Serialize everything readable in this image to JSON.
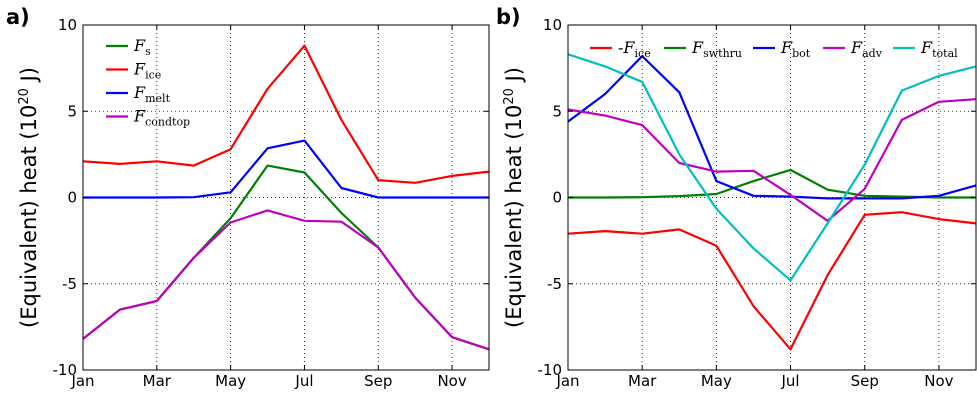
{
  "chart_data": [
    {
      "type": "line",
      "panel_label": "a)",
      "title": "",
      "xlabel": "",
      "ylabel_base": "(Equivalent) heat (10",
      "ylabel_exp": "20",
      "ylabel_end": " J)",
      "xlim": [
        1,
        12
      ],
      "ylim": [
        -10,
        10
      ],
      "x": [
        1,
        2,
        3,
        4,
        5,
        6,
        7,
        8,
        9,
        10,
        11,
        12
      ],
      "xtick_values": [
        1,
        3,
        5,
        7,
        9,
        11
      ],
      "xtick_labels": [
        "Jan",
        "Mar",
        "May",
        "Jul",
        "Sep",
        "Nov"
      ],
      "yticks": [
        -10,
        -5,
        0,
        5,
        10
      ],
      "grid": true,
      "legend_position": "top-left",
      "series": [
        {
          "name": "F",
          "sub": "s",
          "color": "#008000",
          "values": [
            -8.2,
            -6.5,
            -6.0,
            -3.5,
            -1.2,
            1.85,
            1.45,
            -0.9,
            -2.9,
            -5.8,
            -8.1,
            -8.8
          ]
        },
        {
          "name": "F",
          "sub": "ice",
          "color": "#ff0000",
          "values": [
            2.1,
            1.95,
            2.1,
            1.85,
            2.8,
            6.3,
            8.8,
            4.5,
            1.0,
            0.85,
            1.25,
            1.5
          ]
        },
        {
          "name": "F",
          "sub": "melt",
          "color": "#0000ff",
          "values": [
            0.0,
            0.0,
            0.0,
            0.02,
            0.3,
            2.85,
            3.3,
            0.55,
            0.0,
            0.0,
            0.0,
            0.0
          ]
        },
        {
          "name": "F",
          "sub": "condtop",
          "color": "#bf00bf",
          "values": [
            -8.2,
            -6.5,
            -6.0,
            -3.5,
            -1.45,
            -0.75,
            -1.35,
            -1.4,
            -2.9,
            -5.8,
            -8.1,
            -8.8
          ]
        }
      ]
    },
    {
      "type": "line",
      "panel_label": "b)",
      "title": "",
      "xlabel": "",
      "ylabel_base": "(Equivalent) heat (10",
      "ylabel_exp": "20",
      "ylabel_end": " J)",
      "xlim": [
        1,
        12
      ],
      "ylim": [
        -10,
        10
      ],
      "x": [
        1,
        2,
        3,
        4,
        5,
        6,
        7,
        8,
        9,
        10,
        11,
        12
      ],
      "xtick_values": [
        1,
        3,
        5,
        7,
        9,
        11
      ],
      "xtick_labels": [
        "Jan",
        "Mar",
        "May",
        "Jul",
        "Sep",
        "Nov"
      ],
      "yticks": [
        -10,
        -5,
        0,
        5,
        10
      ],
      "grid": true,
      "legend_position": "top",
      "series": [
        {
          "name": "-F",
          "sub": "ice",
          "color": "#ff0000",
          "values": [
            -2.1,
            -1.95,
            -2.1,
            -1.85,
            -2.8,
            -6.3,
            -8.8,
            -4.5,
            -1.0,
            -0.85,
            -1.25,
            -1.5
          ]
        },
        {
          "name": "F",
          "sub": "swthru",
          "color": "#008000",
          "values": [
            0.0,
            0.0,
            0.02,
            0.08,
            0.2,
            0.95,
            1.6,
            0.45,
            0.1,
            0.05,
            0.0,
            0.0
          ]
        },
        {
          "name": "F",
          "sub": "bot",
          "color": "#0000ff",
          "values": [
            4.4,
            6.0,
            8.2,
            6.1,
            0.95,
            0.1,
            0.05,
            -0.05,
            -0.05,
            -0.05,
            0.1,
            0.7
          ]
        },
        {
          "name": "F",
          "sub": "adv",
          "color": "#bf00bf",
          "values": [
            5.1,
            4.75,
            4.2,
            2.0,
            1.5,
            1.55,
            0.15,
            -1.35,
            0.5,
            4.5,
            5.55,
            5.7
          ]
        },
        {
          "name": "F",
          "sub": "total",
          "color": "#00bfbf",
          "values": [
            8.3,
            7.6,
            6.7,
            2.5,
            -0.65,
            -2.95,
            -4.8,
            -1.5,
            1.9,
            6.2,
            7.05,
            7.6
          ]
        }
      ]
    }
  ]
}
